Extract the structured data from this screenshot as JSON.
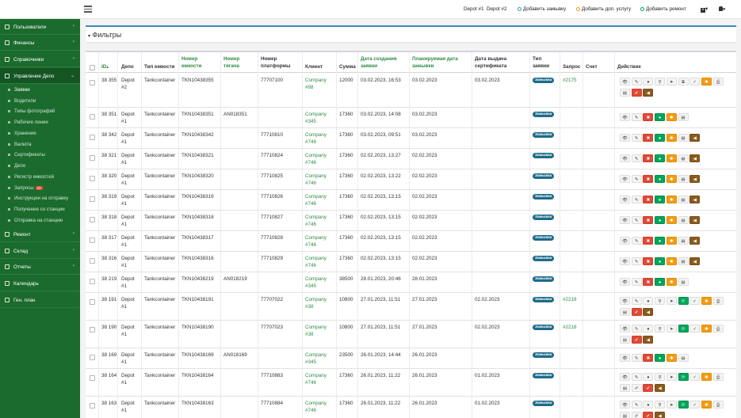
{
  "topbar": {
    "depot1": "Depot #1",
    "depot2": "Depot #2",
    "add_request": "Добавить замывку",
    "add_service": "Добавить доп. услугу",
    "add_repair": "Добавить ремонт",
    "plus_caret": "▾",
    "user_caret": "▾"
  },
  "sidebar": {
    "items": [
      {
        "label": "Пользователи",
        "caret": "‹"
      },
      {
        "label": "Финансы",
        "caret": "‹"
      },
      {
        "label": "Справочники",
        "caret": "‹"
      },
      {
        "label": "Управление Депо",
        "caret": "⌄"
      },
      {
        "label": "Ремонт",
        "caret": "‹"
      },
      {
        "label": "Склад",
        "caret": "‹"
      },
      {
        "label": "Отчеты",
        "caret": "‹"
      },
      {
        "label": "Календарь",
        "caret": ""
      },
      {
        "label": "Ген. план",
        "caret": ""
      }
    ],
    "subitems": [
      "Заявки",
      "Водители",
      "Типы фотографий",
      "Рабочие линии",
      "Хранение",
      "Валюта",
      "Сертификаты",
      "Депо",
      "Регистр емкостей",
      "Запросы",
      "Инструкции на отправку",
      "Получение со станции",
      "Отправка на станцию"
    ],
    "requests_badge": "10"
  },
  "filters": {
    "title": "Фильтры",
    "caret": "▾"
  },
  "table": {
    "headers": {
      "id": "ID",
      "sort_arrow": "▴",
      "depot": "Депо",
      "tank_type": "Тип емкости",
      "tank_no_1": "Номер",
      "tank_no_2": "емкости",
      "tractor_1": "Номер",
      "tractor_2": "тягача",
      "platform_1": "Номер",
      "platform_2": "платформы",
      "client": "Клиент",
      "sum": "Сумма",
      "created_1": "Дата создания",
      "created_2": "заявки",
      "planned_1": "Планируемая дата",
      "planned_2": "замывки",
      "cert_1": "Дата выдача",
      "cert_2": "сертификата",
      "type_1": "Тип",
      "type_2": "заявки",
      "query": "Запрос",
      "invoice": "Счет",
      "action": "Действие"
    },
    "rows": [
      {
        "id": "38 355",
        "depot_a": "Depot",
        "depot_b": "#2",
        "tank_type": "Tankcontainer",
        "tank_no": "TKN10438355",
        "tractor": "",
        "platform": "77707100",
        "client_a": "Company",
        "client_b": "#98",
        "sum": "12000",
        "created": "03.02.2023, 16:53",
        "planned": "03.02.2023",
        "cert": "03.02.2023",
        "type": "Замывка",
        "query": "#2175",
        "invoice": ""
      },
      {
        "id": "38 351",
        "depot_a": "Depot",
        "depot_b": "#1",
        "tank_type": "Tankcontainer",
        "tank_no": "TKN10438351",
        "tractor": "AN018351",
        "platform": "",
        "client_a": "Company",
        "client_b": "#345",
        "sum": "17360",
        "created": "03.02.2023, 14:08",
        "planned": "03.02.2023",
        "cert": "",
        "type": "Замывка",
        "query": "",
        "invoice": ""
      },
      {
        "id": "38 342",
        "depot_a": "Depot",
        "depot_b": "#1",
        "tank_type": "Tankcontainer",
        "tank_no": "TKN10438342",
        "tractor": "",
        "platform": "77710810",
        "client_a": "Company",
        "client_b": "#746",
        "sum": "17360",
        "created": "03.02.2023, 09:51",
        "planned": "03.02.2023",
        "cert": "",
        "type": "Замывка",
        "query": "",
        "invoice": ""
      },
      {
        "id": "38 321",
        "depot_a": "Depot",
        "depot_b": "#1",
        "tank_type": "Tankcontainer",
        "tank_no": "TKN10438321",
        "tractor": "",
        "platform": "77710824",
        "client_a": "Company",
        "client_b": "#746",
        "sum": "17360",
        "created": "02.02.2023, 13:27",
        "planned": "02.02.2023",
        "cert": "",
        "type": "Замывка",
        "query": "",
        "invoice": ""
      },
      {
        "id": "38 320",
        "depot_a": "Depot",
        "depot_b": "#1",
        "tank_type": "Tankcontainer",
        "tank_no": "TKN10438320",
        "tractor": "",
        "platform": "77710825",
        "client_a": "Company",
        "client_b": "#746",
        "sum": "17360",
        "created": "02.02.2023, 13:22",
        "planned": "02.02.2023",
        "cert": "",
        "type": "Замывка",
        "query": "",
        "invoice": ""
      },
      {
        "id": "38 319",
        "depot_a": "Depot",
        "depot_b": "#1",
        "tank_type": "Tankcontainer",
        "tank_no": "TKN10438319",
        "tractor": "",
        "platform": "77710826",
        "client_a": "Company",
        "client_b": "#746",
        "sum": "17360",
        "created": "02.02.2023, 13:15",
        "planned": "02.02.2023",
        "cert": "",
        "type": "Замывка",
        "query": "",
        "invoice": ""
      },
      {
        "id": "38 318",
        "depot_a": "Depot",
        "depot_b": "#1",
        "tank_type": "Tankcontainer",
        "tank_no": "TKN10438318",
        "tractor": "",
        "platform": "77710827",
        "client_a": "Company",
        "client_b": "#746",
        "sum": "17360",
        "created": "02.02.2023, 13:15",
        "planned": "02.02.2023",
        "cert": "",
        "type": "Замывка",
        "query": "",
        "invoice": ""
      },
      {
        "id": "38 317",
        "depot_a": "Depot",
        "depot_b": "#1",
        "tank_type": "Tankcontainer",
        "tank_no": "TKN10438317",
        "tractor": "",
        "platform": "77710828",
        "client_a": "Company",
        "client_b": "#746",
        "sum": "17360",
        "created": "02.02.2023, 13:15",
        "planned": "02.02.2023",
        "cert": "",
        "type": "Замывка",
        "query": "",
        "invoice": ""
      },
      {
        "id": "38 316",
        "depot_a": "Depot",
        "depot_b": "#1",
        "tank_type": "Tankcontainer",
        "tank_no": "TKN10438316",
        "tractor": "",
        "platform": "77710829",
        "client_a": "Company",
        "client_b": "#746",
        "sum": "17360",
        "created": "02.02.2023, 13:15",
        "planned": "02.02.2023",
        "cert": "",
        "type": "Замывка",
        "query": "",
        "invoice": ""
      },
      {
        "id": "38 219",
        "depot_a": "Depot",
        "depot_b": "#1",
        "tank_type": "Tankcontainer",
        "tank_no": "TKN10438219",
        "tractor": "AN018219",
        "platform": "",
        "client_a": "Company",
        "client_b": "#345",
        "sum": "38500",
        "created": "28.01.2023, 20:46",
        "planned": "28.01.2023",
        "cert": "",
        "type": "Замывка",
        "query": "",
        "invoice": ""
      },
      {
        "id": "38 191",
        "depot_a": "Depot",
        "depot_b": "#1",
        "tank_type": "Tankcontainer",
        "tank_no": "TKN10438191",
        "tractor": "",
        "platform": "77707022",
        "client_a": "Company",
        "client_b": "#38",
        "sum": "10800",
        "created": "27.01.2023, 11:51",
        "planned": "27.01.2023",
        "cert": "02.02.2023",
        "type": "Замывка",
        "query": "#2218",
        "invoice": ""
      },
      {
        "id": "38 190",
        "depot_a": "Depot",
        "depot_b": "#1",
        "tank_type": "Tankcontainer",
        "tank_no": "TKN10438190",
        "tractor": "",
        "platform": "77707023",
        "client_a": "Company",
        "client_b": "#38",
        "sum": "10800",
        "created": "27.01.2023, 11:51",
        "planned": "27.01.2023",
        "cert": "02.02.2023",
        "type": "Замывка",
        "query": "#2218",
        "invoice": ""
      },
      {
        "id": "38 169",
        "depot_a": "Depot",
        "depot_b": "#1",
        "tank_type": "Tankcontainer",
        "tank_no": "TKN10438169",
        "tractor": "AN018169",
        "platform": "",
        "client_a": "Company",
        "client_b": "#345",
        "sum": "23500",
        "created": "26.01.2023, 14:44",
        "planned": "26.01.2023",
        "cert": "",
        "type": "Замывка",
        "query": "",
        "invoice": ""
      },
      {
        "id": "38 164",
        "depot_a": "Depot",
        "depot_b": "#1",
        "tank_type": "Tankcontainer",
        "tank_no": "TKN10438164",
        "tractor": "",
        "platform": "77710883",
        "client_a": "Company",
        "client_b": "#746",
        "sum": "17360",
        "created": "26.01.2023, 11:22",
        "planned": "26.01.2023",
        "cert": "01.02.2023",
        "type": "Замывка",
        "query": "",
        "invoice": ""
      },
      {
        "id": "38 163",
        "depot_a": "Depot",
        "depot_b": "#1",
        "tank_type": "Tankcontainer",
        "tank_no": "TKN10438163",
        "tractor": "",
        "platform": "77710884",
        "client_a": "Company",
        "client_b": "#746",
        "sum": "17360",
        "created": "26.01.2023, 11:22",
        "planned": "26.01.2023",
        "cert": "01.02.2023",
        "type": "Замывка",
        "query": "",
        "invoice": ""
      }
    ],
    "action_buttons": {
      "full": {
        "line1": [
          [
            "eye",
            "view",
            "👁",
            "plain"
          ],
          [
            "edit",
            "edit",
            "✎",
            "plain"
          ],
          [
            "info",
            "info",
            "●",
            "plain"
          ],
          [
            "search",
            "search",
            "⚲",
            "plain"
          ],
          [
            "send",
            "send",
            "➤",
            "plain"
          ],
          [
            "copy",
            "copy",
            "⧉",
            "plain"
          ],
          [
            "check",
            "check",
            "✓",
            "plain"
          ],
          [
            "gear",
            "settings",
            "✱",
            "orange"
          ],
          [
            "print",
            "print",
            "⎙",
            "plain"
          ]
        ],
        "line2": [
          [
            "doc",
            "document",
            "▤",
            "plain"
          ],
          [
            "confirm",
            "confirm",
            "✔",
            "red"
          ],
          [
            "sound",
            "notify",
            "◀",
            "brown"
          ]
        ]
      },
      "basic": {
        "line1": [
          [
            "eye",
            "view",
            "👁",
            "plain"
          ],
          [
            "edit",
            "edit",
            "✎",
            "plain"
          ],
          [
            "delete",
            "delete",
            "✖",
            "red"
          ],
          [
            "go",
            "go",
            "●",
            "green"
          ],
          [
            "gear",
            "settings",
            "✱",
            "orange"
          ],
          [
            "doc",
            "document",
            "▤",
            "plain"
          ]
        ]
      },
      "mid": {
        "line1": [
          [
            "eye",
            "view",
            "👁",
            "plain"
          ],
          [
            "edit",
            "edit",
            "✎",
            "plain"
          ],
          [
            "delete",
            "delete",
            "✖",
            "red"
          ],
          [
            "go",
            "go",
            "●",
            "green"
          ],
          [
            "gear",
            "settings",
            "✱",
            "orange"
          ],
          [
            "doc",
            "document",
            "▤",
            "plain"
          ],
          [
            "sound",
            "notify",
            "◀",
            "brown"
          ]
        ]
      },
      "green": {
        "line1": [
          [
            "eye",
            "view",
            "👁",
            "plain"
          ],
          [
            "edit",
            "edit",
            "✎",
            "plain"
          ],
          [
            "info",
            "info",
            "●",
            "plain"
          ],
          [
            "search",
            "search",
            "⚲",
            "plain"
          ],
          [
            "send",
            "send",
            "➤",
            "plain"
          ],
          [
            "refresh",
            "refresh",
            "⟳",
            "green"
          ],
          [
            "check",
            "check",
            "✓",
            "plain"
          ],
          [
            "gear",
            "settings",
            "✱",
            "orange"
          ],
          [
            "print",
            "print",
            "⎙",
            "plain"
          ]
        ],
        "line2": [
          [
            "doc",
            "document",
            "▤",
            "plain"
          ],
          [
            "confirm",
            "confirm",
            "✔",
            "red"
          ],
          [
            "sound",
            "notify",
            "◀",
            "brown"
          ]
        ]
      },
      "greenw": {
        "line1": [
          [
            "eye",
            "view",
            "👁",
            "plain"
          ],
          [
            "edit",
            "edit",
            "✎",
            "plain"
          ],
          [
            "info",
            "info",
            "●",
            "plain"
          ],
          [
            "search",
            "search",
            "⚲",
            "plain"
          ],
          [
            "send",
            "send",
            "➤",
            "plain"
          ],
          [
            "refresh",
            "refresh",
            "⟳",
            "green"
          ],
          [
            "check",
            "check",
            "✓",
            "plain"
          ],
          [
            "gear",
            "settings",
            "✱",
            "orange"
          ],
          [
            "print",
            "print",
            "⎙",
            "plain"
          ]
        ],
        "line2": [
          [
            "doc",
            "document",
            "▤",
            "plain"
          ],
          [
            "wrench",
            "repair",
            "✐",
            "plain"
          ],
          [
            "confirm",
            "confirm",
            "✔",
            "red"
          ],
          [
            "sound",
            "notify",
            "◀",
            "brown"
          ]
        ]
      }
    },
    "row_action_sets": [
      "full",
      "basic",
      "mid",
      "mid",
      "mid",
      "mid",
      "mid",
      "mid",
      "mid",
      "basic",
      "green",
      "green",
      "basic",
      "greenw",
      "greenw"
    ]
  }
}
